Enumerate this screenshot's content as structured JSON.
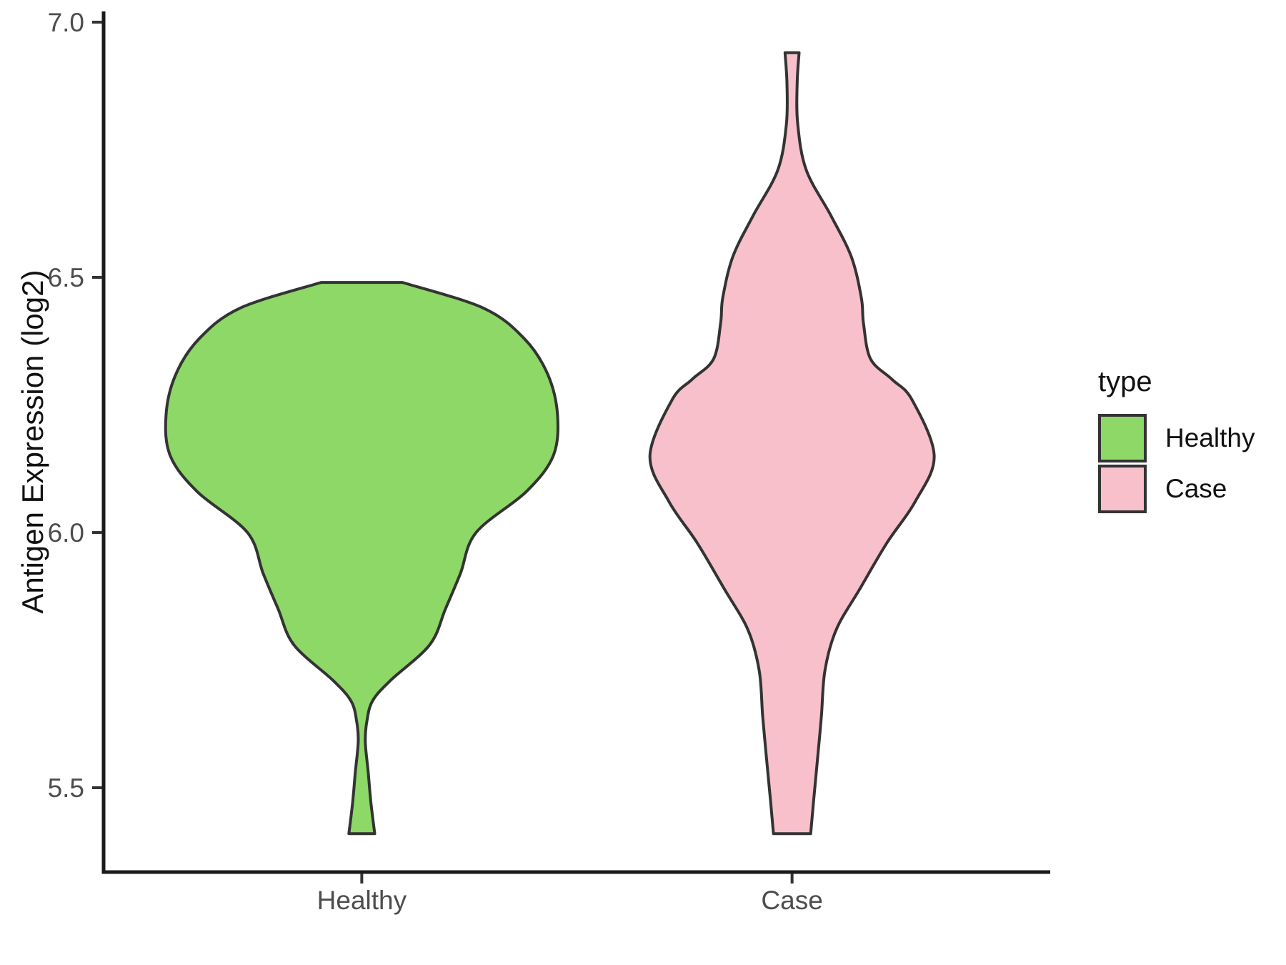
{
  "figure": {
    "background": "#FFFFFF"
  },
  "chart_data": {
    "type": "violin",
    "title": "",
    "xlabel": "",
    "ylabel": "Antigen Expression (log2)",
    "categories": [
      "Healthy",
      "Case"
    ],
    "y_axis": {
      "ticks": [
        7.0,
        6.5,
        6.0,
        5.5
      ],
      "tick_labels": [
        "7.0",
        "6.5",
        "6.0",
        "5.5"
      ],
      "range": [
        5.27,
        7.04
      ],
      "grid": false
    },
    "x_axis": {
      "tick_labels": [
        "Healthy",
        "Case"
      ]
    },
    "legend": {
      "title": "type",
      "position": "right",
      "entries": [
        {
          "label": "Healthy",
          "color": "#8DD867"
        },
        {
          "label": "Case",
          "color": "#F7C0CB"
        }
      ]
    },
    "style": {
      "outline_color": "#333333",
      "axis_color": "#1A1A1A",
      "tick_text_color": "#4D4D4D",
      "text_color": "#111111"
    },
    "series": [
      {
        "name": "Healthy",
        "fill": "#8DD867",
        "y_min": 5.41,
        "y_max": 6.49,
        "density_profile": [
          [
            6.49,
            0.208
          ],
          [
            6.44,
            0.62
          ],
          [
            6.38,
            0.83
          ],
          [
            6.31,
            0.95
          ],
          [
            6.23,
            1.0
          ],
          [
            6.15,
            0.978
          ],
          [
            6.08,
            0.84
          ],
          [
            6.0,
            0.584
          ],
          [
            5.92,
            0.504
          ],
          [
            5.85,
            0.427
          ],
          [
            5.78,
            0.347
          ],
          [
            5.71,
            0.146
          ],
          [
            5.67,
            0.055
          ],
          [
            5.63,
            0.026
          ],
          [
            5.59,
            0.018
          ],
          [
            5.53,
            0.033
          ],
          [
            5.47,
            0.047
          ],
          [
            5.41,
            0.066
          ]
        ]
      },
      {
        "name": "Case",
        "fill": "#F7C0CB",
        "y_min": 5.41,
        "y_max": 6.94,
        "density_profile": [
          [
            6.94,
            0.036
          ],
          [
            6.88,
            0.026
          ],
          [
            6.8,
            0.029
          ],
          [
            6.71,
            0.073
          ],
          [
            6.62,
            0.2
          ],
          [
            6.54,
            0.303
          ],
          [
            6.46,
            0.354
          ],
          [
            6.41,
            0.365
          ],
          [
            6.34,
            0.401
          ],
          [
            6.3,
            0.511
          ],
          [
            6.26,
            0.613
          ],
          [
            6.15,
            0.726
          ],
          [
            6.06,
            0.628
          ],
          [
            5.98,
            0.485
          ],
          [
            5.89,
            0.347
          ],
          [
            5.81,
            0.226
          ],
          [
            5.73,
            0.168
          ],
          [
            5.64,
            0.15
          ],
          [
            5.56,
            0.131
          ],
          [
            5.47,
            0.109
          ],
          [
            5.41,
            0.095
          ]
        ]
      }
    ]
  }
}
